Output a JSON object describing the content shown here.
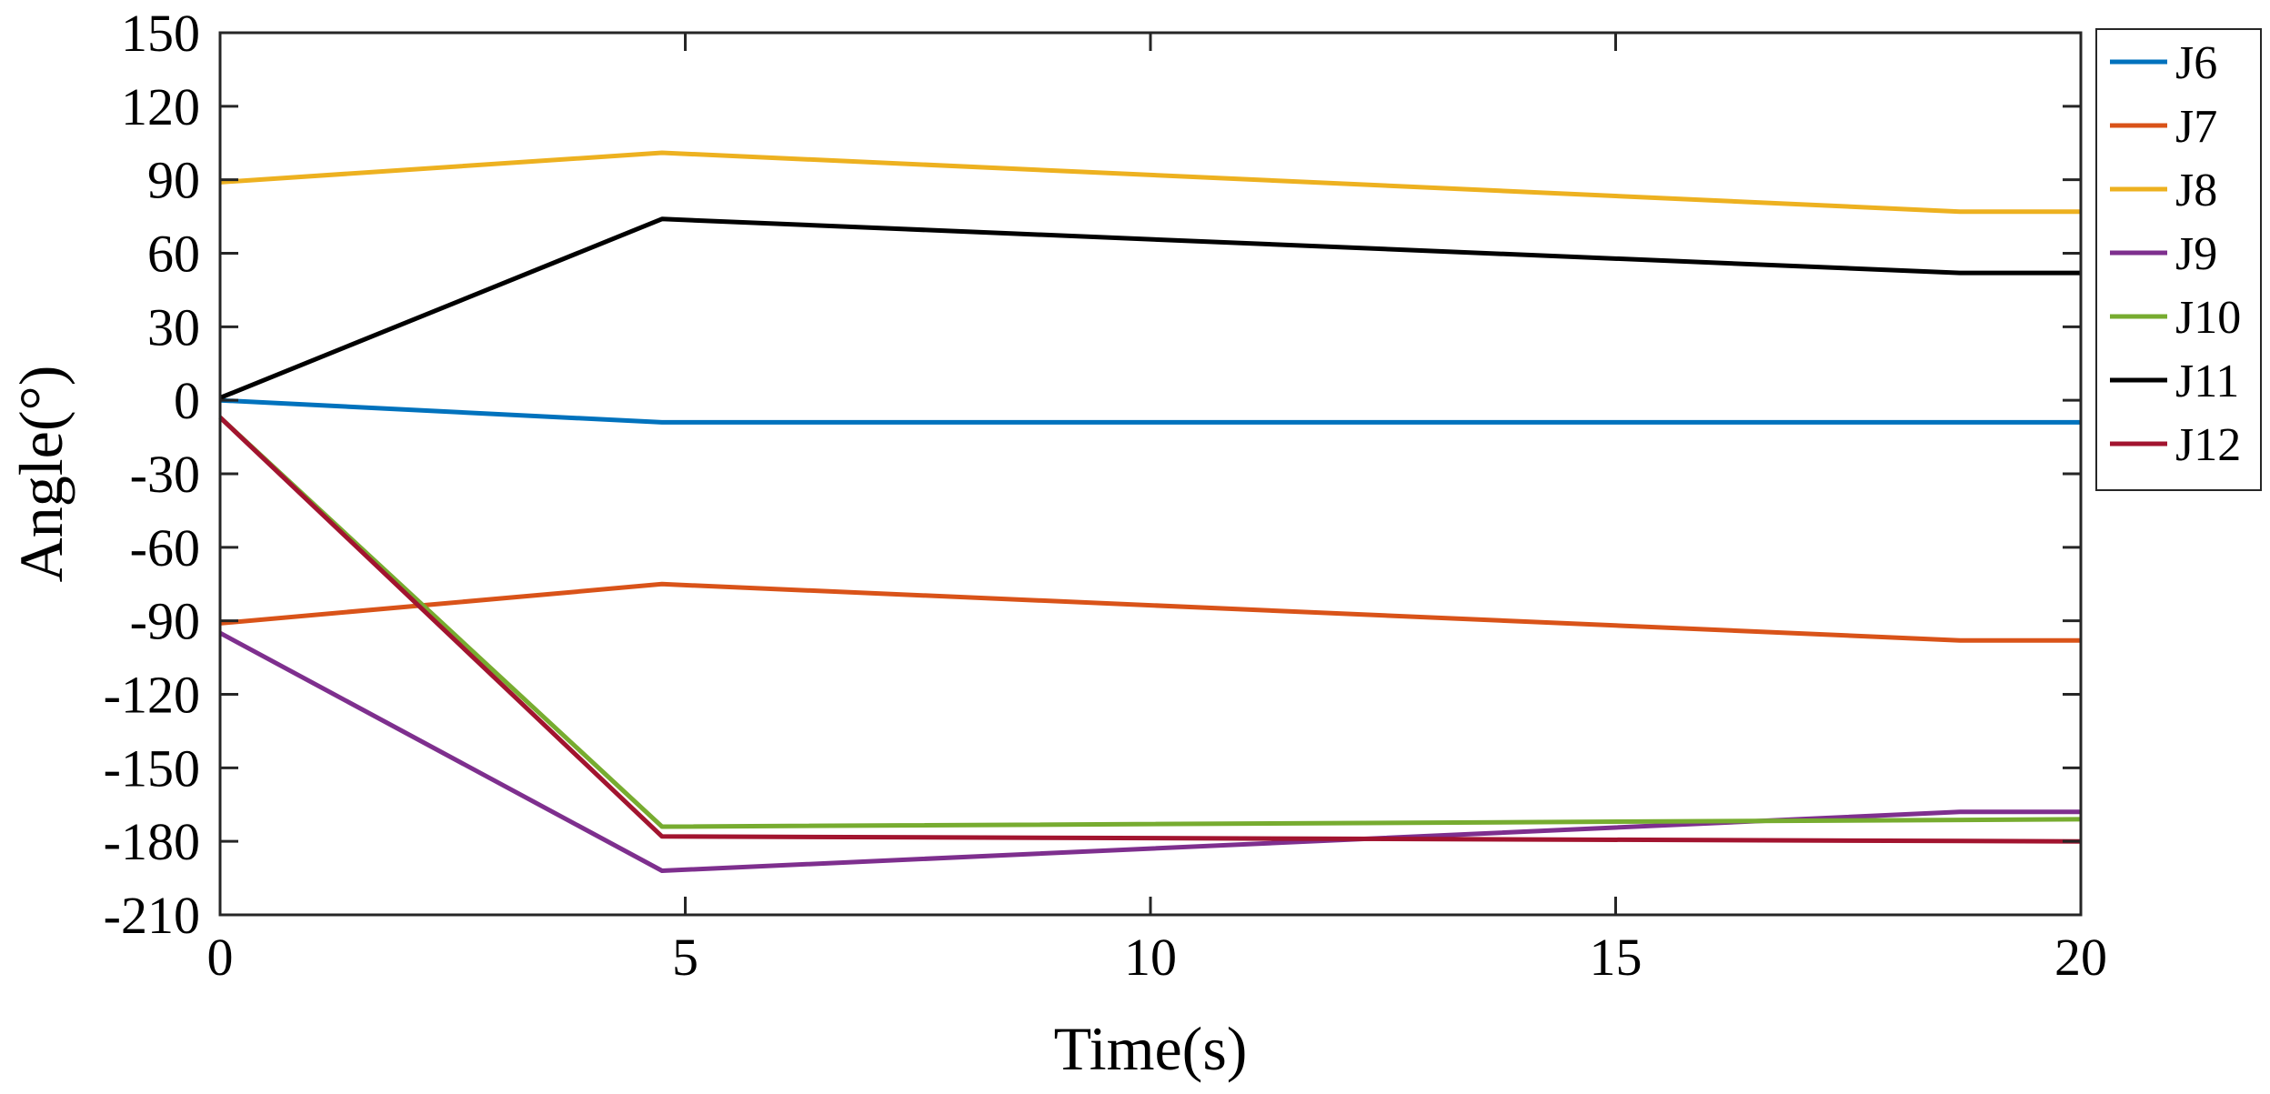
{
  "chart_data": {
    "type": "line",
    "title": "",
    "xlabel": "Time(s)",
    "ylabel": "Angle(°)",
    "xlim": [
      0,
      20
    ],
    "ylim": [
      -210,
      150
    ],
    "xticks": [
      0,
      5,
      10,
      15,
      20
    ],
    "yticks": [
      150,
      120,
      90,
      60,
      30,
      0,
      -30,
      -60,
      -90,
      -120,
      -150,
      -180,
      -210
    ],
    "grid": false,
    "legend_position": "outside-right-top",
    "series": [
      {
        "name": "J6",
        "color": "#0072BD",
        "x": [
          0,
          4.75,
          20
        ],
        "y": [
          0,
          -9,
          -9
        ]
      },
      {
        "name": "J7",
        "color": "#D95319",
        "x": [
          0,
          4.75,
          18.7,
          20
        ],
        "y": [
          -91,
          -75,
          -98,
          -98
        ]
      },
      {
        "name": "J8",
        "color": "#EDB120",
        "x": [
          0,
          4.75,
          18.7,
          20
        ],
        "y": [
          89,
          101,
          77,
          77
        ]
      },
      {
        "name": "J9",
        "color": "#7E2F8E",
        "x": [
          0,
          4.75,
          18.7,
          20
        ],
        "y": [
          -95,
          -192,
          -168,
          -168
        ]
      },
      {
        "name": "J10",
        "color": "#77AC30",
        "x": [
          0,
          4.75,
          20
        ],
        "y": [
          -7,
          -174,
          -171
        ]
      },
      {
        "name": "J11",
        "color": "#000000",
        "x": [
          0,
          4.75,
          18.7,
          20
        ],
        "y": [
          1,
          74,
          52,
          52
        ]
      },
      {
        "name": "J12",
        "color": "#A2142F",
        "x": [
          0,
          4.75,
          20
        ],
        "y": [
          -7,
          -178,
          -180
        ]
      }
    ]
  }
}
